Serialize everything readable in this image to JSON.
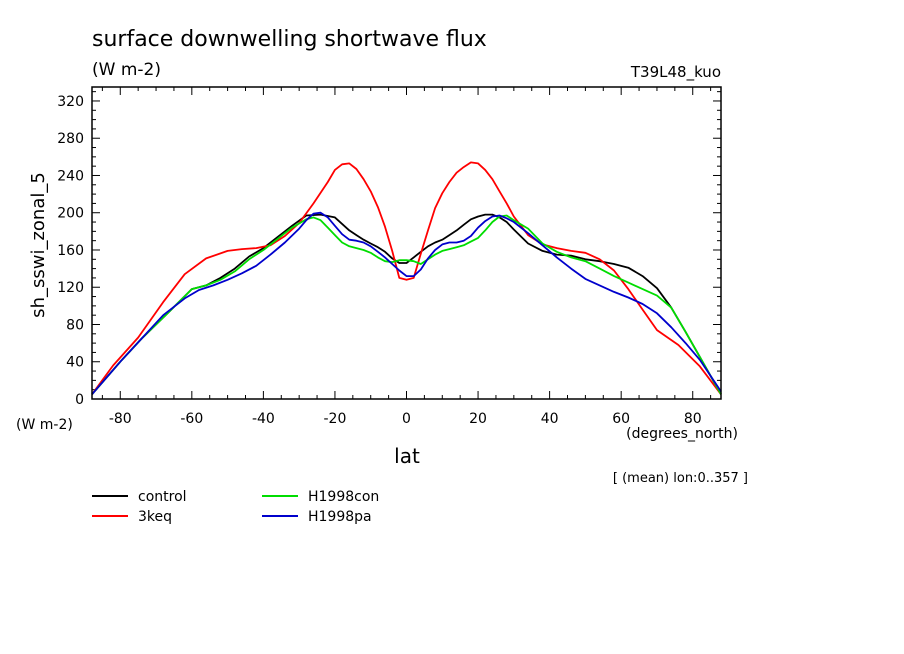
{
  "chart_data": {
    "type": "line",
    "title": "surface downwelling shortwave flux",
    "subtitle": "(W m-2)",
    "run_label": "T39L48_kuo",
    "ylabel": "sh_sswi_zonal_5",
    "y_units": "(W m-2)",
    "xlabel": "lat",
    "x_units": "(degrees_north)",
    "note": "[ (mean) lon:0..357 ]",
    "xlim": [
      -87.9,
      87.9
    ],
    "ylim": [
      0,
      335
    ],
    "x_ticks": [
      -80,
      -60,
      -40,
      -20,
      0,
      20,
      40,
      60,
      80
    ],
    "y_ticks": [
      0,
      40,
      80,
      120,
      160,
      200,
      240,
      280,
      320
    ],
    "grid": false,
    "legend_position": "bottom-left",
    "series": [
      {
        "name": "control",
        "color": "#000000",
        "x": [
          -87.9,
          -80,
          -74,
          -66,
          -60,
          -56,
          -52,
          -48,
          -44,
          -40,
          -36,
          -32,
          -28,
          -24,
          -20,
          -18,
          -16,
          -14,
          -12,
          -10,
          -8,
          -6,
          -4,
          -2,
          0,
          2,
          4,
          6,
          8,
          10,
          12,
          14,
          16,
          18,
          20,
          22,
          24,
          26,
          28,
          30,
          34,
          38,
          42,
          46,
          50,
          54,
          58,
          62,
          66,
          70,
          74,
          78,
          82,
          87.9
        ],
        "y": [
          5,
          40,
          65,
          95,
          118,
          122,
          130,
          140,
          153,
          162,
          174,
          186,
          197,
          198,
          195,
          188,
          181,
          176,
          171,
          167,
          163,
          158,
          151,
          146,
          146,
          152,
          158,
          164,
          168,
          171,
          176,
          181,
          187,
          193,
          196,
          198,
          198,
          195,
          190,
          182,
          167,
          159,
          155,
          154,
          150,
          148,
          145,
          141,
          132,
          119,
          98,
          72,
          45,
          5
        ]
      },
      {
        "name": "3keq",
        "color": "#ff0000",
        "x": [
          -87.9,
          -82,
          -75,
          -68,
          -62,
          -56,
          -50,
          -46,
          -42,
          -38,
          -34,
          -30,
          -26,
          -22,
          -20,
          -18,
          -16,
          -14,
          -12,
          -10,
          -8,
          -6,
          -4,
          -2,
          0,
          2,
          4,
          6,
          8,
          10,
          12,
          14,
          16,
          18,
          20,
          22,
          24,
          26,
          28,
          30,
          34,
          38,
          42,
          46,
          50,
          54,
          58,
          62,
          66,
          70,
          76,
          82,
          87.9
        ],
        "y": [
          5,
          36,
          66,
          104,
          134,
          151,
          159,
          161,
          162,
          165,
          175,
          189,
          210,
          233,
          246,
          252,
          253,
          247,
          236,
          223,
          206,
          185,
          159,
          130,
          128,
          130,
          156,
          181,
          205,
          221,
          233,
          243,
          249,
          254,
          253,
          246,
          236,
          223,
          210,
          196,
          176,
          166,
          162,
          159,
          157,
          150,
          138,
          118,
          96,
          74,
          58,
          35,
          5
        ]
      },
      {
        "name": "H1998con",
        "color": "#00dd00",
        "x": [
          -87.9,
          -80,
          -74,
          -66,
          -60,
          -56,
          -52,
          -48,
          -44,
          -40,
          -36,
          -32,
          -28,
          -26,
          -24,
          -22,
          -20,
          -18,
          -16,
          -14,
          -12,
          -10,
          -8,
          -6,
          -4,
          -2,
          0,
          2,
          4,
          6,
          8,
          10,
          12,
          14,
          16,
          18,
          20,
          22,
          24,
          26,
          28,
          30,
          34,
          38,
          42,
          46,
          50,
          54,
          58,
          62,
          66,
          70,
          74,
          78,
          82,
          87.9
        ],
        "y": [
          5,
          40,
          65,
          95,
          118,
          122,
          128,
          137,
          150,
          160,
          172,
          184,
          193,
          195,
          192,
          184,
          176,
          168,
          164,
          162,
          160,
          157,
          152,
          148,
          147,
          149,
          149,
          148,
          145,
          150,
          155,
          159,
          161,
          163,
          165,
          169,
          173,
          181,
          190,
          196,
          197,
          192,
          183,
          167,
          158,
          152,
          148,
          140,
          132,
          125,
          118,
          111,
          98,
          72,
          45,
          5
        ]
      },
      {
        "name": "H1998pa",
        "color": "#0000cc",
        "x": [
          -87.9,
          -80,
          -74,
          -68,
          -62,
          -58,
          -54,
          -50,
          -46,
          -42,
          -38,
          -34,
          -30,
          -28,
          -26,
          -24,
          -22,
          -20,
          -18,
          -16,
          -14,
          -12,
          -10,
          -8,
          -6,
          -4,
          -2,
          0,
          2,
          4,
          6,
          8,
          10,
          12,
          14,
          16,
          18,
          20,
          22,
          24,
          26,
          28,
          30,
          34,
          38,
          42,
          46,
          50,
          54,
          58,
          62,
          66,
          70,
          74,
          78,
          82,
          87.9
        ],
        "y": [
          5,
          40,
          65,
          90,
          108,
          117,
          122,
          128,
          135,
          143,
          155,
          168,
          183,
          192,
          199,
          200,
          195,
          186,
          177,
          171,
          170,
          168,
          164,
          158,
          152,
          145,
          138,
          132,
          132,
          139,
          151,
          160,
          166,
          168,
          168,
          170,
          175,
          184,
          191,
          196,
          197,
          194,
          190,
          178,
          165,
          152,
          140,
          129,
          122,
          115,
          109,
          102,
          92,
          77,
          60,
          42,
          8
        ]
      }
    ]
  }
}
